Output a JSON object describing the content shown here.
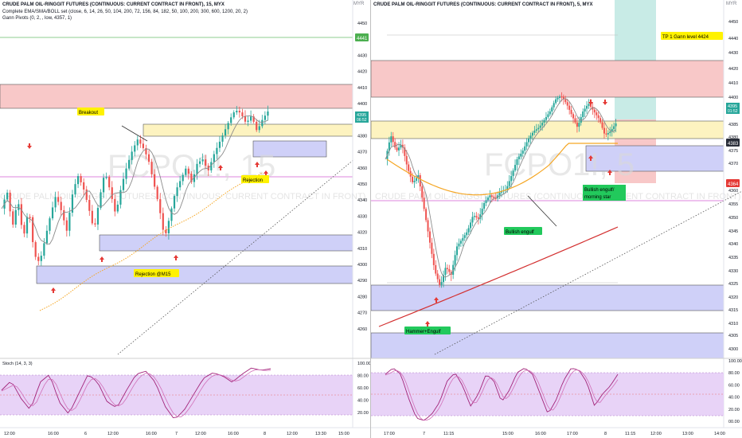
{
  "left": {
    "title": "CRUDE PALM OIL-RINGGIT FUTURES (CONTINUOUS: CURRENT CONTRACT IN FRONT), 15, MYX",
    "indicator1": "Complete EMA/SMA/BOLL set (close, 6, 14, 26, 50, 104, 200, 72, 156, 84, 182, 50, 100, 200, 300, 600, 1200, 20, 2)",
    "indicator2": "Gann Pivots (0, 2, , low, 4357, 1)",
    "currency": "MYR",
    "watermark_symbol": "FCPO1!, 15",
    "watermark_desc": "CRUDE PALM OIL-RINGGIT FUTURES (CONTINUOUS: CURRENT CONTRACT IN FRONT)",
    "price_axis": [
      "4450",
      "4440",
      "4430",
      "4420",
      "4410",
      "4400",
      "4390",
      "4380",
      "4370",
      "4360",
      "4350",
      "4340",
      "4330",
      "4320",
      "4310",
      "4300",
      "4290",
      "4280",
      "4270",
      "4260"
    ],
    "price_tag_green": "4441",
    "price_tag_current": "4395",
    "price_tag_timer": "06:52",
    "time_axis": [
      "12:00",
      "16:00",
      "6",
      "12:00",
      "16:00",
      "7",
      "12:00",
      "16:00",
      "8",
      "12:00",
      "13:30",
      "15:00"
    ],
    "labels": {
      "breakout": "Breakout",
      "rejection": "Rejection",
      "rejection_m15": "Rejection @M15"
    },
    "stoch_title": "Stoch (14, 3, 3)",
    "stoch_axis": [
      "100.00",
      "80.00",
      "60.00",
      "40.00",
      "20.00"
    ]
  },
  "right": {
    "title": "CRUDE PALM OIL-RINGGIT FUTURES (CONTINUOUS: CURRENT CONTRACT IN FRONT), 5, MYX",
    "currency": "MYR",
    "watermark_symbol": "FCPO1!, 5",
    "watermark_desc": "CRUDE PALM OIL-RINGGIT FUTURES (CONTINUOUS: CURRENT CONTRACT IN FRONT)",
    "price_axis": [
      "4450",
      "4440",
      "4430",
      "4420",
      "4410",
      "4400",
      "4390",
      "4385",
      "4380",
      "4375",
      "4370",
      "4360",
      "4355",
      "4350",
      "4345",
      "4340",
      "4335",
      "4330",
      "4325",
      "4320",
      "4315",
      "4310",
      "4305",
      "4300"
    ],
    "price_tag_current": "4395",
    "price_tag_timer": "01:52",
    "price_tag_dark": "4383",
    "price_tag_red": "4364",
    "time_axis": [
      "17:00",
      "7",
      "11:15",
      "15:00",
      "16:00",
      "17:00",
      "8",
      "11:15",
      "12:00",
      "13:00",
      "14:00"
    ],
    "labels": {
      "tp": "TP 1 Gann level 4424",
      "bullish_engulf": "Bullish engulf",
      "bullish_engulf_star": "Bullish engulf/",
      "morning_star": "morning star",
      "hammer_engulf": "Hammer+Engulf"
    },
    "stoch_axis": [
      "100.00",
      "80.00",
      "60.00",
      "40.00",
      "20.00",
      "00.00"
    ]
  },
  "colors": {
    "bull": "#26a69a",
    "bear": "#ef5350",
    "resistance_zone": "#f8c8c8",
    "supply_zone": "#fdf3c0",
    "demand_zone": "#cfd0f8",
    "stoch_band": "#e8d3f7",
    "stoch_line": "#a2247a",
    "ema_orange": "#f5a623",
    "ema_red": "#d32f2f",
    "ma_gray": "#8c8c8c",
    "label_yellow": "#fff200",
    "label_green": "#22c95c",
    "position_tp": "#c8ebe6",
    "position_sl": "#f8c8c8"
  }
}
